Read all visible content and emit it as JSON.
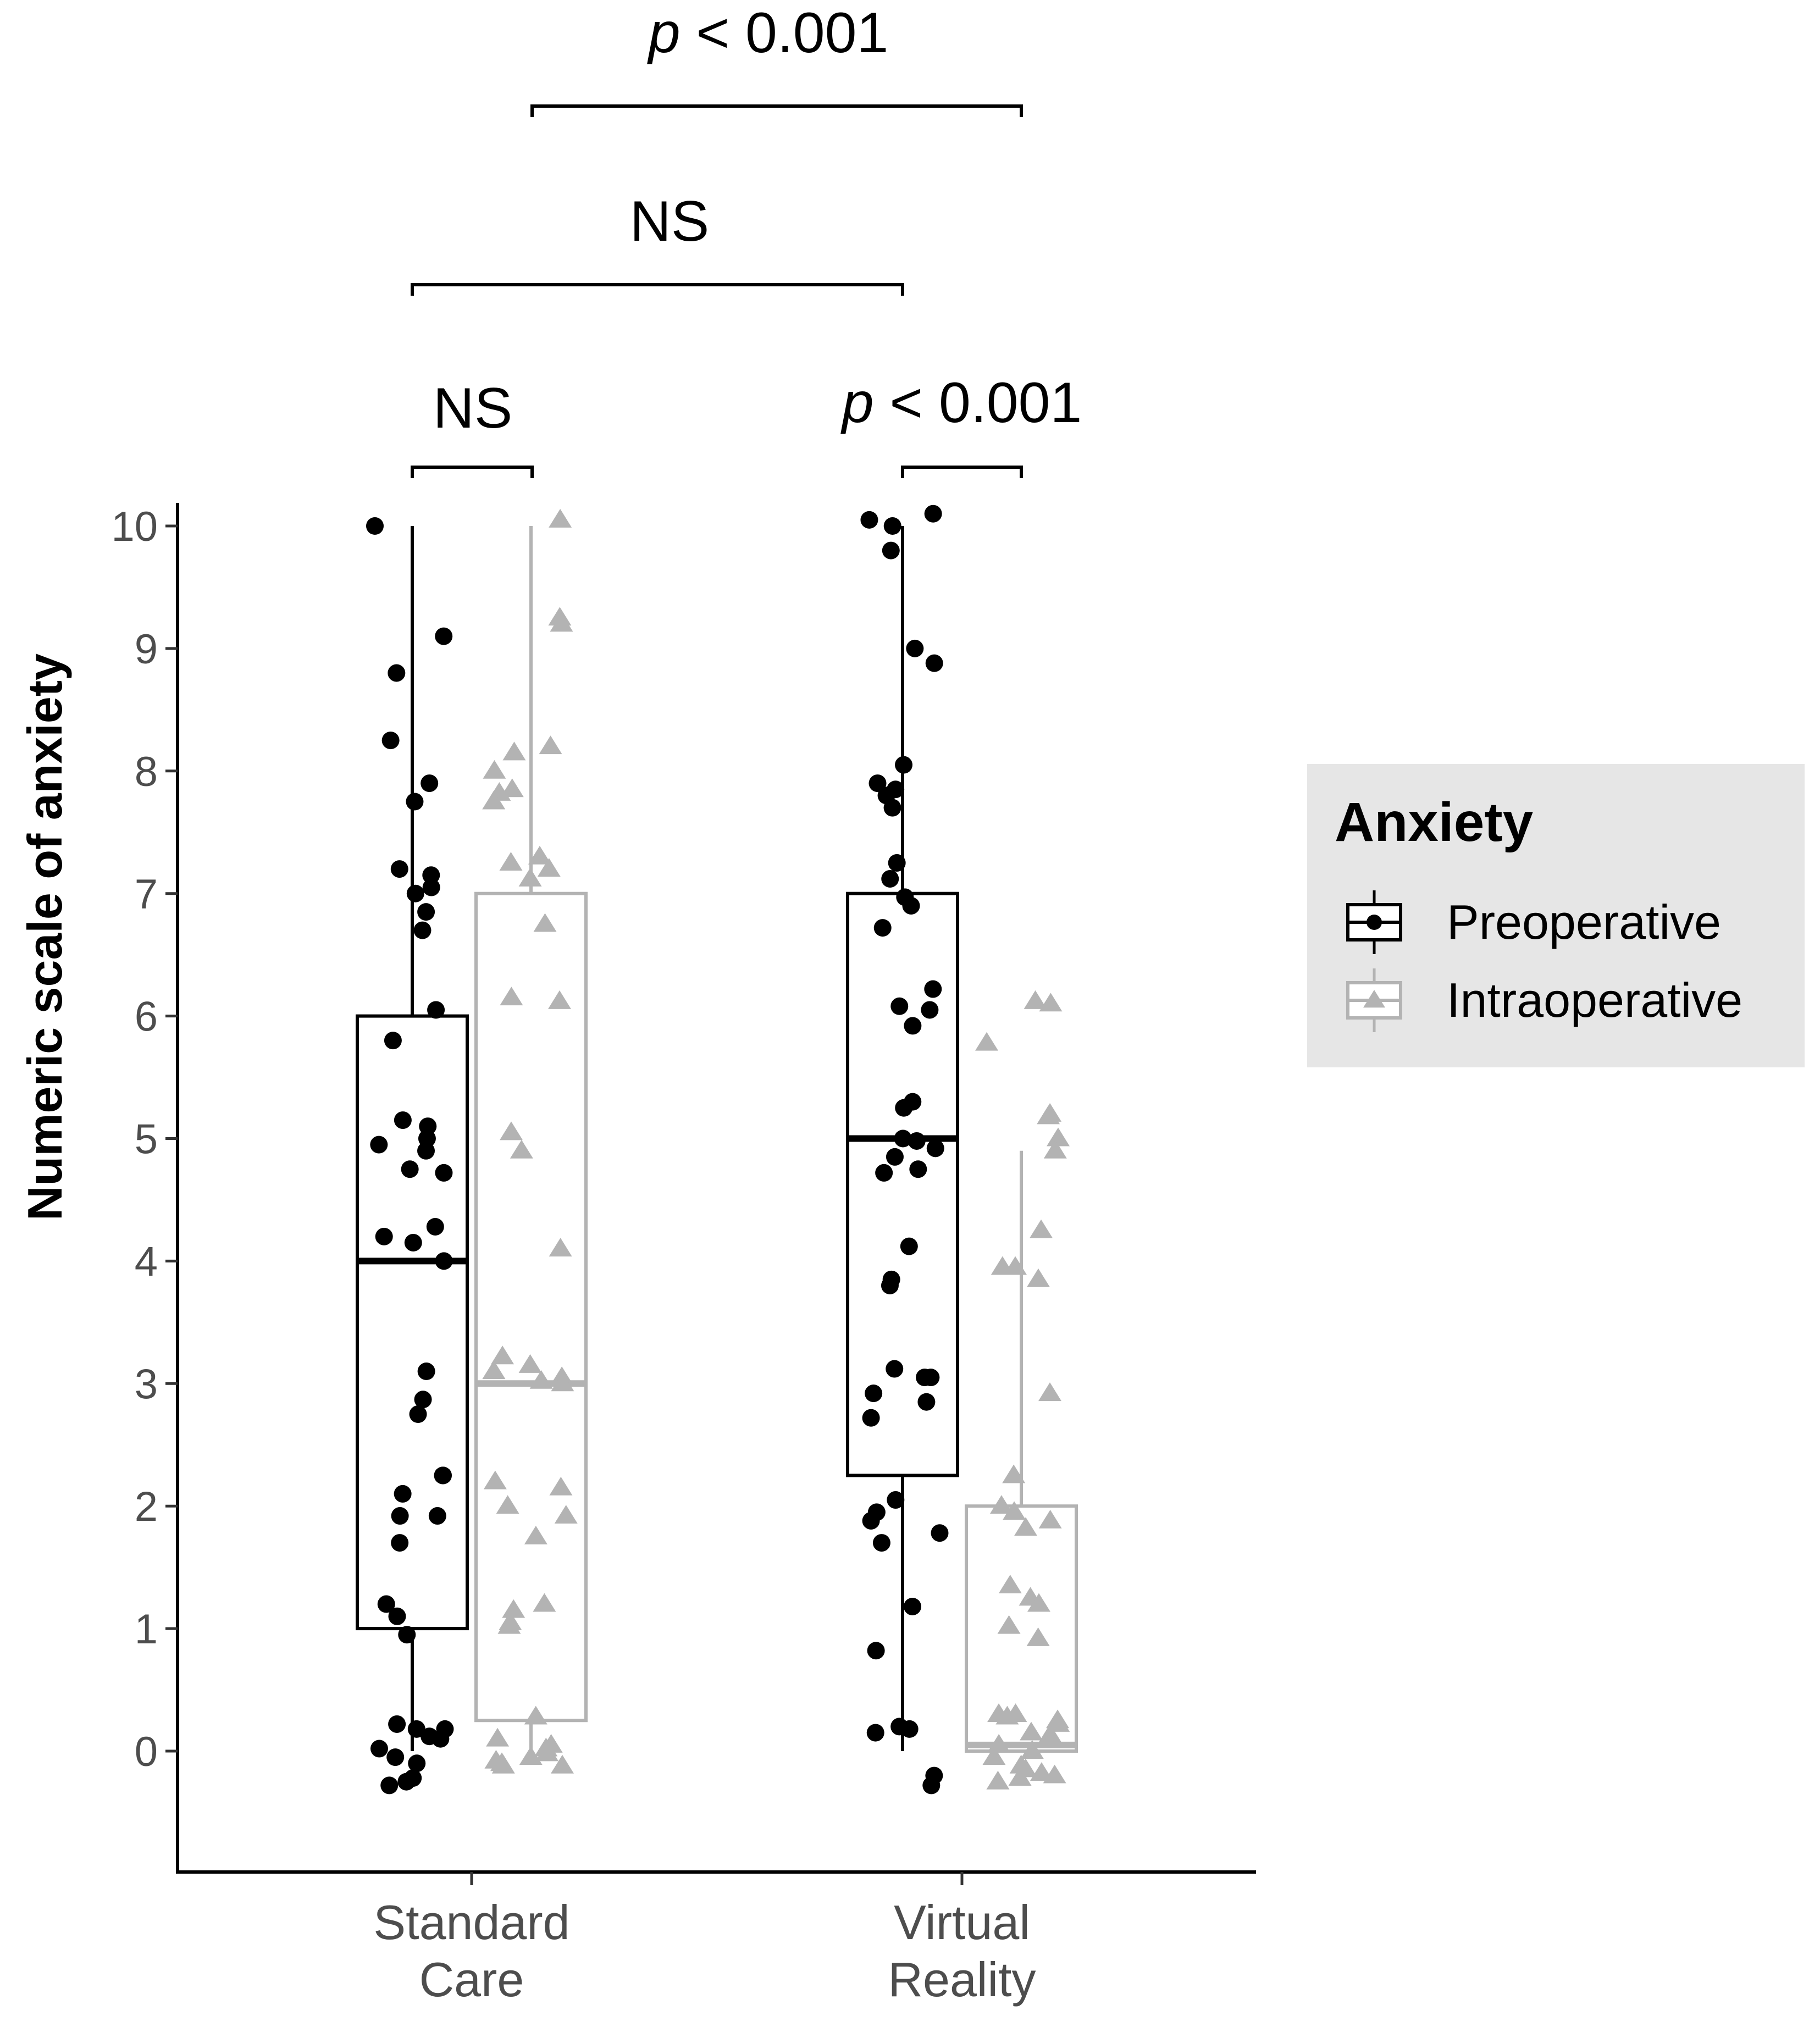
{
  "chart_data": {
    "type": "boxplot",
    "xlabel": "",
    "ylabel": "Numeric scale of anxiety",
    "ylim": [
      -0.5,
      10.2
    ],
    "yticks": [
      0,
      1,
      2,
      3,
      4,
      5,
      6,
      7,
      8,
      9,
      10
    ],
    "categories": [
      {
        "line1": "Standard",
        "line2": "Care"
      },
      {
        "line1": "Virtual",
        "line2": "Reality"
      }
    ],
    "legend": {
      "title": "Anxiety",
      "position": "right",
      "entries": [
        "Preoperative",
        "Intraoperative"
      ]
    },
    "series": [
      {
        "name": "Preoperative",
        "color": "#000000",
        "marker": "circle",
        "boxes": [
          {
            "min": 0,
            "q1": 1,
            "median": 4,
            "q3": 6,
            "max": 10
          },
          {
            "min": 0,
            "q1": 2.25,
            "median": 5,
            "q3": 7,
            "max": 10
          }
        ],
        "points": [
          [
            10.0,
            9.1,
            8.8,
            8.25,
            7.9,
            7.75,
            7.2,
            7.15,
            7.05,
            7.0,
            6.85,
            6.7,
            6.05,
            5.8,
            5.15,
            5.1,
            5.0,
            4.95,
            4.9,
            4.75,
            4.72,
            4.28,
            4.2,
            4.15,
            4.0,
            3.1,
            2.87,
            2.75,
            2.25,
            2.25,
            2.1,
            1.92,
            1.92,
            1.7,
            1.2,
            1.1,
            0.95,
            0.22,
            0.18,
            0.18,
            0.12,
            0.1,
            0.02,
            -0.05,
            -0.1,
            -0.22,
            -0.25,
            -0.28
          ],
          [
            10.1,
            10.05,
            10.0,
            9.8,
            9.0,
            8.88,
            8.05,
            7.9,
            7.85,
            7.8,
            7.7,
            7.25,
            7.12,
            6.97,
            6.9,
            6.72,
            6.22,
            6.08,
            6.05,
            5.92,
            5.3,
            5.25,
            5.0,
            4.98,
            4.92,
            4.85,
            4.75,
            4.72,
            4.12,
            3.85,
            3.8,
            3.12,
            3.05,
            3.05,
            2.92,
            2.85,
            2.72,
            2.05,
            1.95,
            1.88,
            1.78,
            1.7,
            1.18,
            0.82,
            0.2,
            0.18,
            0.15,
            -0.2,
            -0.28
          ]
        ]
      },
      {
        "name": "Intraoperative",
        "color": "#b3b3b3",
        "marker": "triangle",
        "boxes": [
          {
            "min": 0,
            "q1": 0.25,
            "median": 3,
            "q3": 7,
            "max": 10
          },
          {
            "min": 0,
            "q1": 0,
            "median": 0.05,
            "q3": 2,
            "max": 4.9
          }
        ],
        "points": [
          [
            10.05,
            9.25,
            9.2,
            8.2,
            8.15,
            8.0,
            7.85,
            7.82,
            7.75,
            7.3,
            7.25,
            7.2,
            7.12,
            6.75,
            6.15,
            6.12,
            5.05,
            4.9,
            4.1,
            3.22,
            3.15,
            3.1,
            3.05,
            3.02,
            3.0,
            2.2,
            2.15,
            2.0,
            1.92,
            1.75,
            1.2,
            1.15,
            1.05,
            1.02,
            0.28,
            0.1,
            0.05,
            0.02,
            -0.02,
            -0.05,
            -0.08,
            -0.1,
            -0.12,
            -0.12
          ],
          [
            6.12,
            6.1,
            5.78,
            5.2,
            5.18,
            5.0,
            4.9,
            4.25,
            3.95,
            3.95,
            3.85,
            2.92,
            2.25,
            2.0,
            1.95,
            1.88,
            1.82,
            1.35,
            1.25,
            1.2,
            1.02,
            0.92,
            0.3,
            0.3,
            0.28,
            0.25,
            0.22,
            0.15,
            0.12,
            0.1,
            0.05,
            0.0,
            -0.05,
            -0.12,
            -0.15,
            -0.18,
            -0.2,
            -0.22,
            -0.25
          ]
        ]
      }
    ],
    "comparisons": [
      {
        "label_italic": "p",
        "label_rest": " < 0.001",
        "between": "Standard Care Intraoperative vs Virtual Reality Intraoperative"
      },
      {
        "label_italic": "",
        "label_rest": "NS",
        "between": "Standard Care Preoperative vs Virtual Reality Preoperative"
      },
      {
        "label_italic": "",
        "label_rest": "NS",
        "between": "Standard Care Preoperative vs Standard Care Intraoperative"
      },
      {
        "label_italic": "p",
        "label_rest": " < 0.001",
        "between": "Virtual Reality Preoperative vs Virtual Reality Intraoperative"
      }
    ]
  }
}
